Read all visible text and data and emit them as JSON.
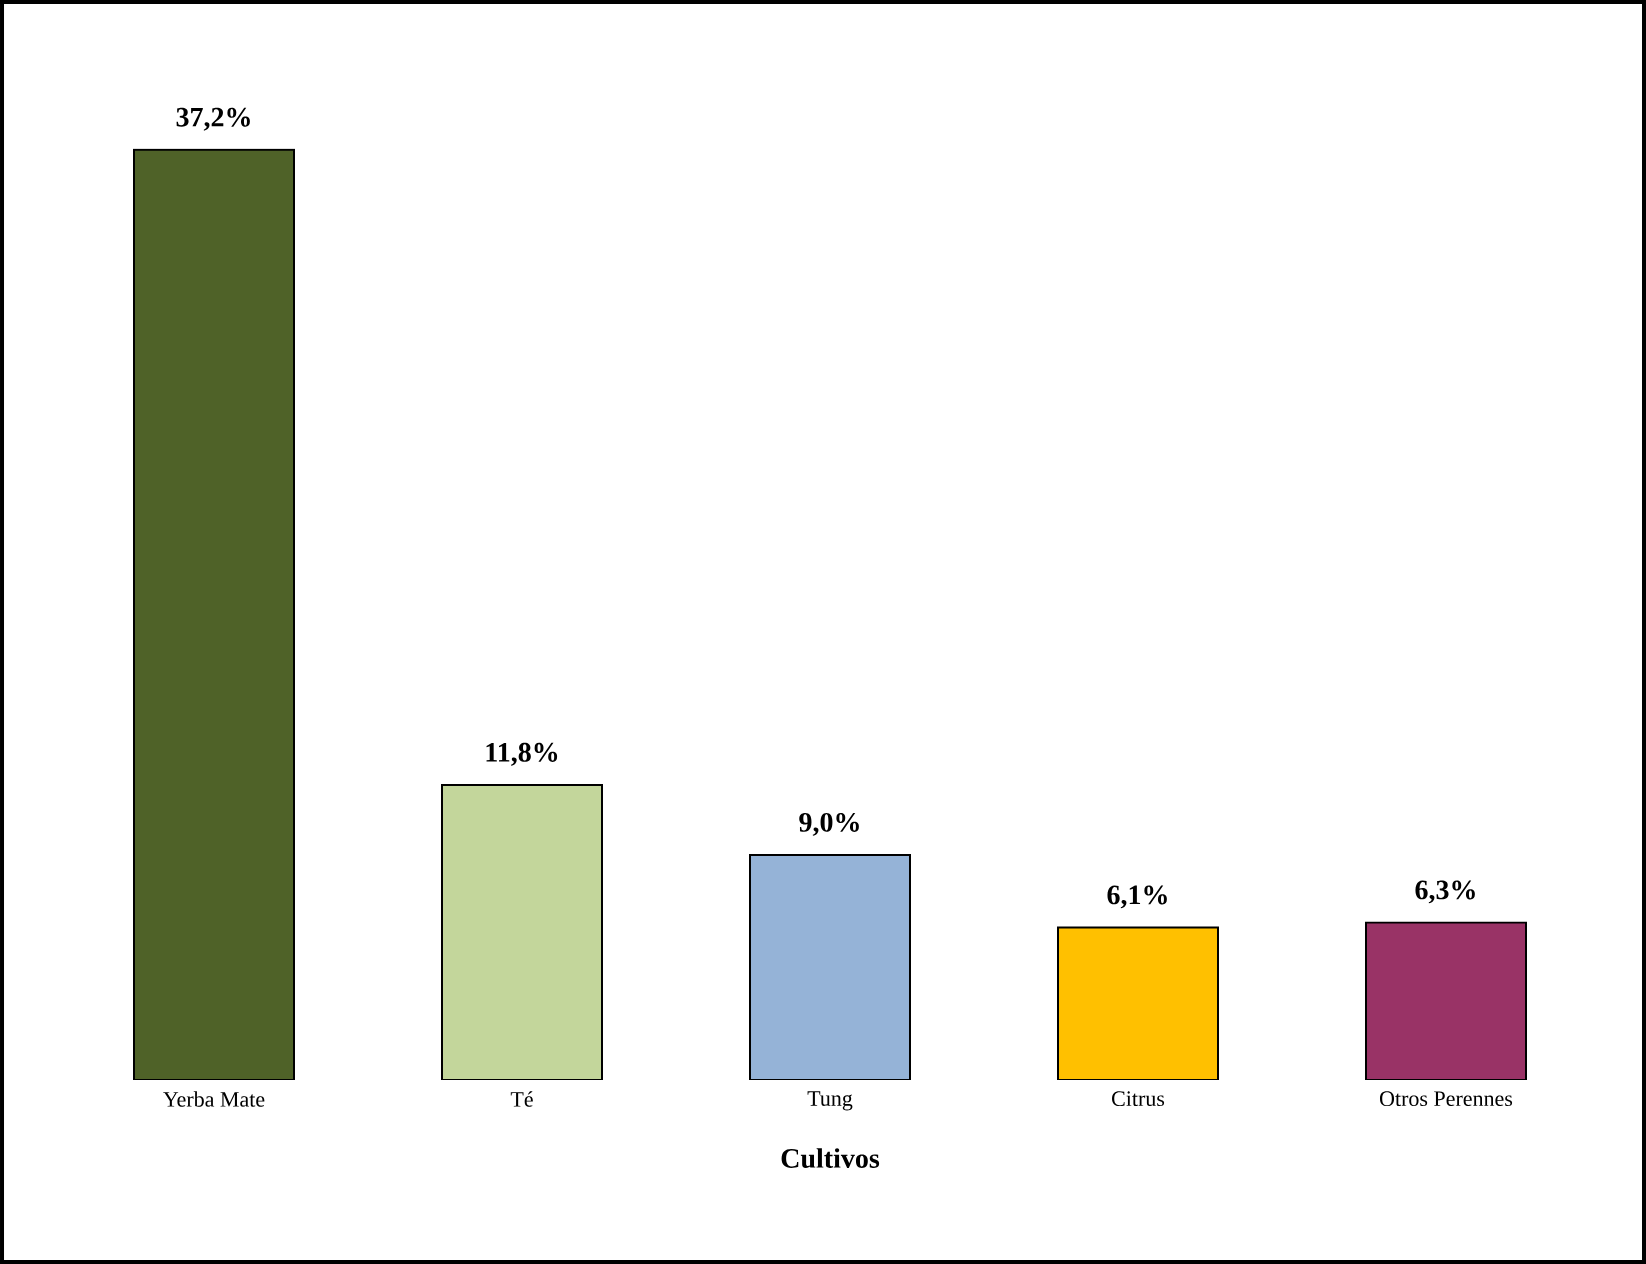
{
  "chart_data": {
    "type": "bar",
    "xlabel": "Cultivos",
    "categories": [
      "Yerba Mate",
      "Té",
      "Tung",
      "Citrus",
      "Otros Perennes"
    ],
    "values": [
      37.2,
      11.8,
      9.0,
      6.1,
      6.3
    ],
    "value_labels": [
      "37,2%",
      "11,8%",
      "9,0%",
      "6,1%",
      "6,3%"
    ],
    "colors": [
      "#4f6228",
      "#c3d69b",
      "#95b3d7",
      "#ffc000",
      "#993366"
    ]
  }
}
